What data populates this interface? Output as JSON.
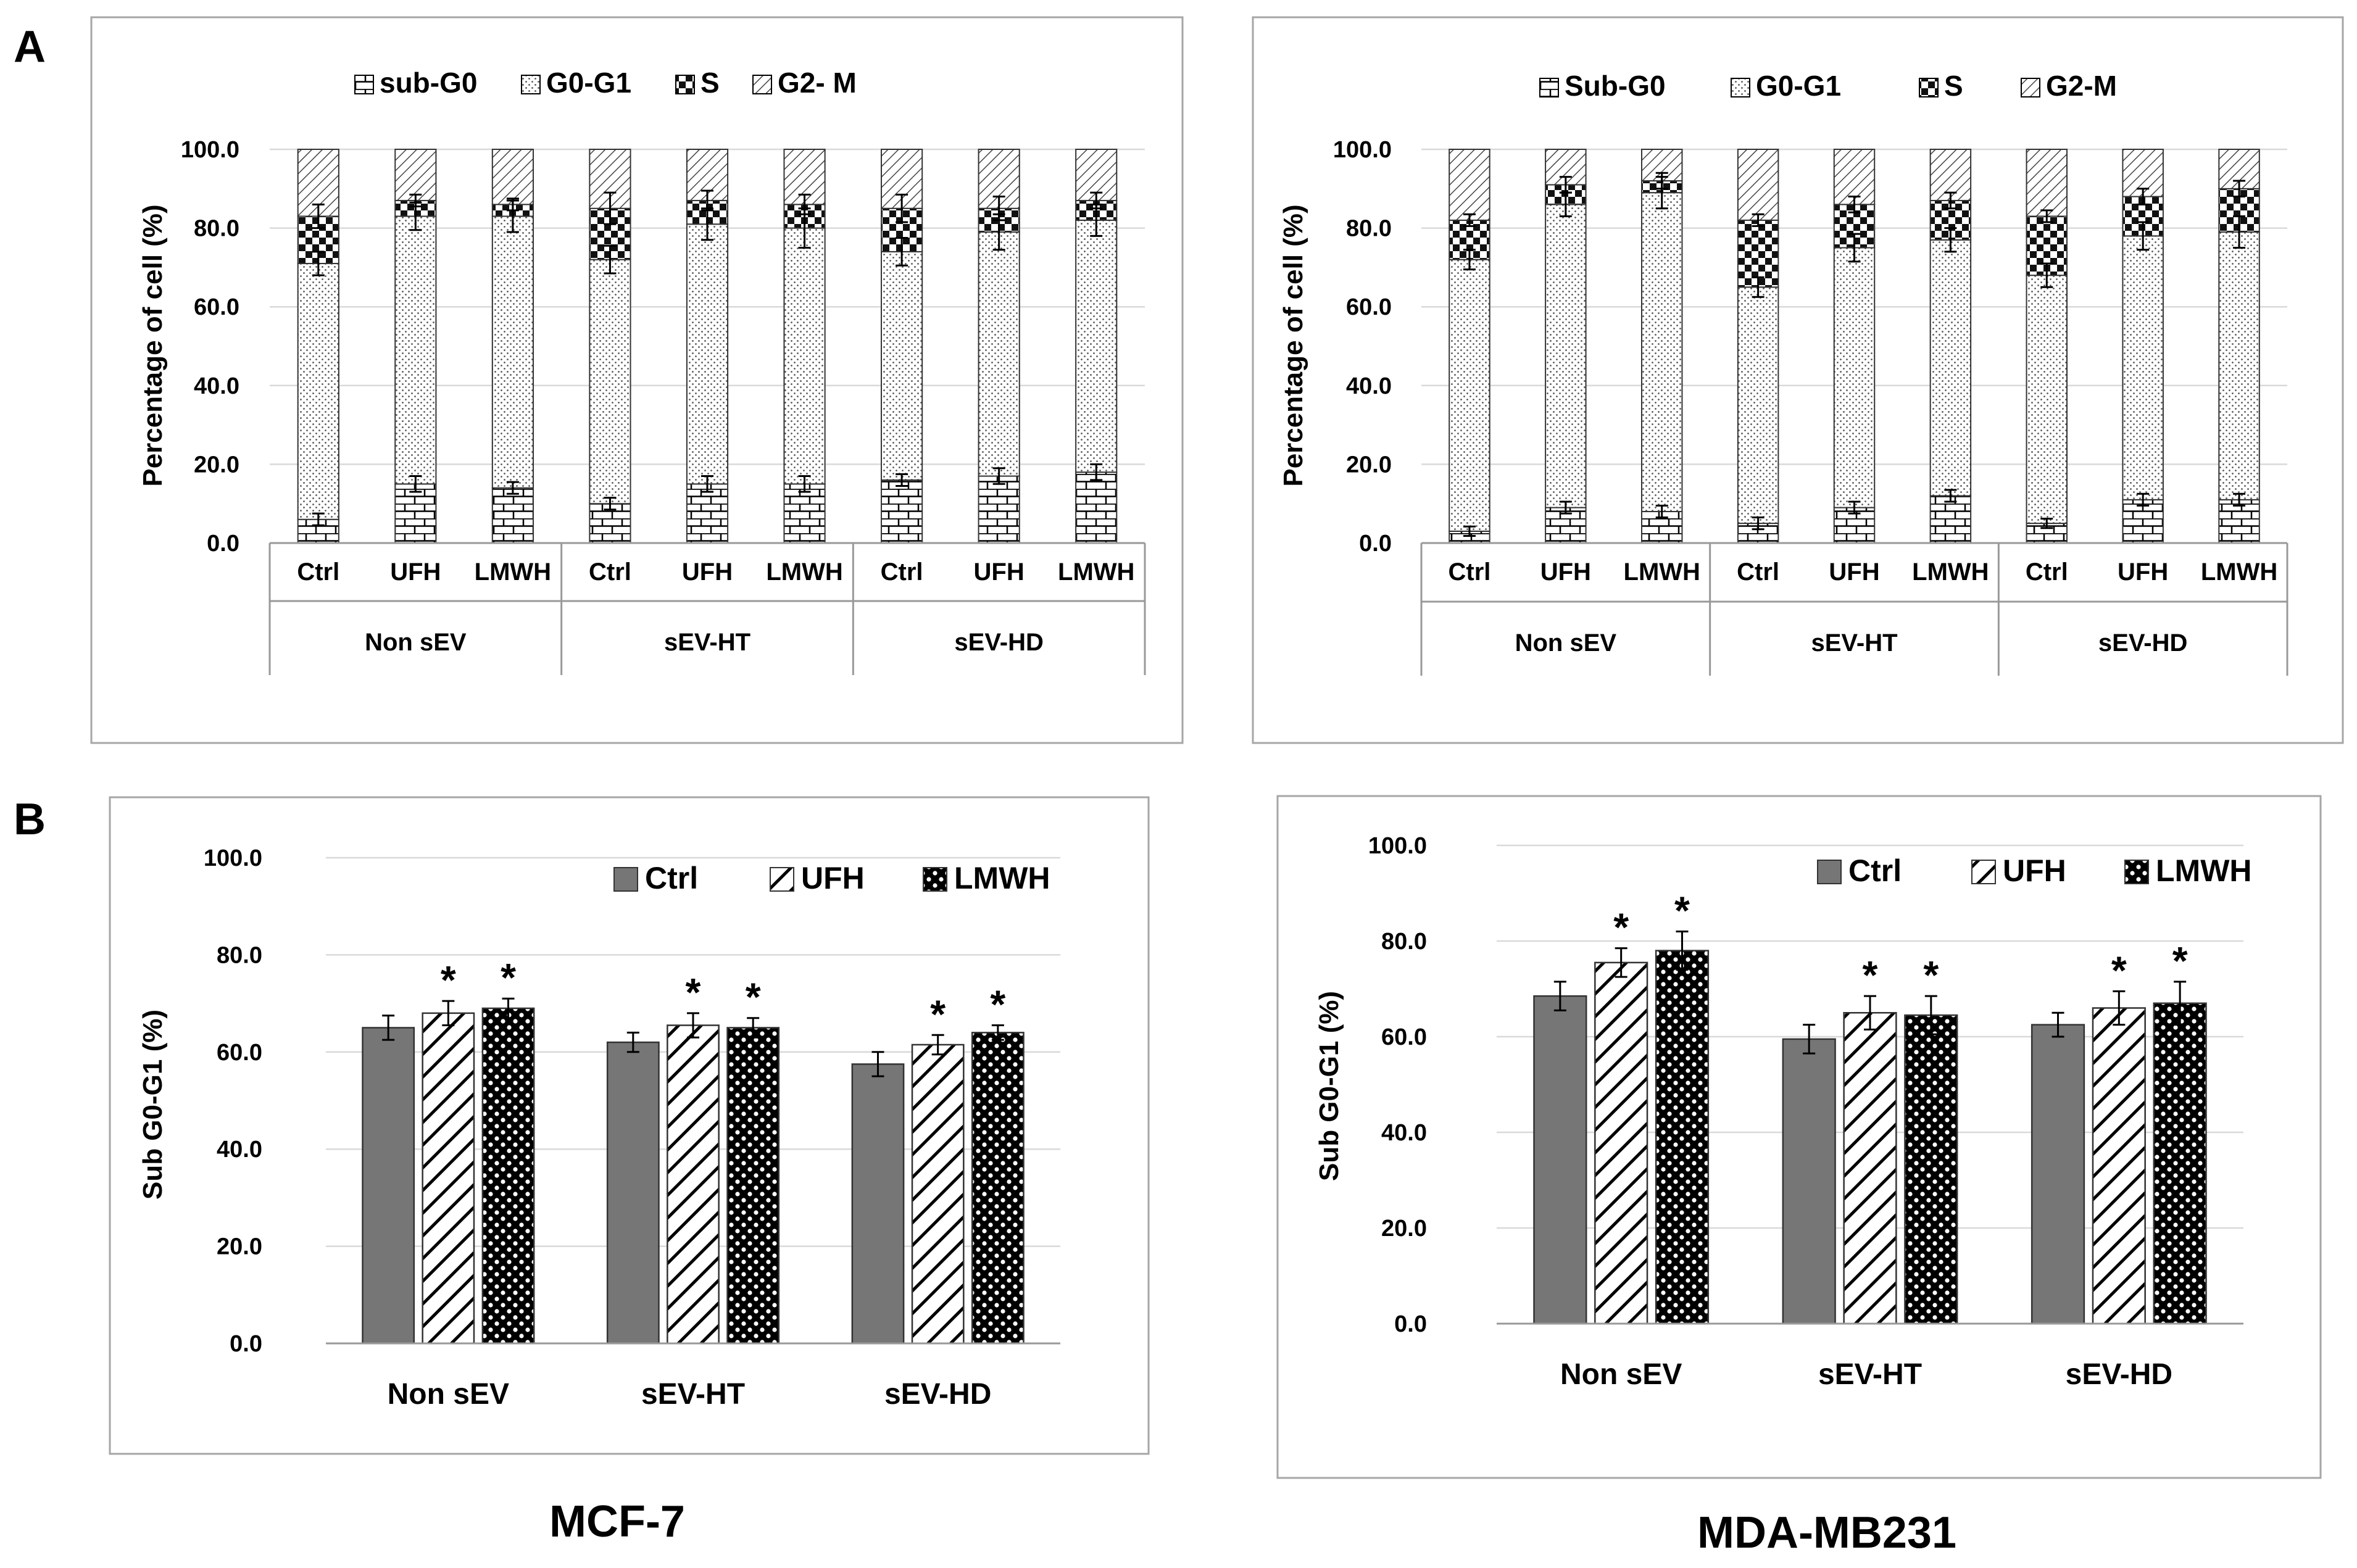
{
  "panel_labels": {
    "a": "A",
    "b": "B"
  },
  "cell_lines": {
    "left": "MCF-7",
    "right": "MDA-MB231"
  },
  "colors": {
    "frame": "#a6a6a6",
    "text": "#000000",
    "bar_dark": "#767676",
    "grid": "#d9d9d9"
  },
  "chart_data": [
    {
      "id": "a-mcf7",
      "type": "stacked-bar",
      "ylabel": "Percentage of cell (%)",
      "ylim": [
        0,
        100
      ],
      "yticks": [
        "0.0",
        "20.0",
        "40.0",
        "60.0",
        "80.0",
        "100.0"
      ],
      "legend": [
        "sub-G0",
        "G0-G1",
        "S",
        "G2- M"
      ],
      "groups": [
        {
          "label": "Non sEV",
          "bars": [
            "Ctrl",
            "UFH",
            "LMWH"
          ]
        },
        {
          "label": "sEV-HT",
          "bars": [
            "Ctrl",
            "UFH",
            "LMWH"
          ]
        },
        {
          "label": "sEV-HD",
          "bars": [
            "Ctrl",
            "UFH",
            "LMWH"
          ]
        }
      ],
      "series": [
        {
          "name": "sub-G0",
          "values": [
            6,
            15,
            14,
            10,
            15,
            15,
            16,
            17,
            18
          ]
        },
        {
          "name": "G0-G1",
          "values": [
            65,
            68,
            69,
            62,
            66,
            65,
            58,
            62,
            64
          ]
        },
        {
          "name": "S",
          "values": [
            12,
            4,
            3,
            13,
            6,
            6,
            11,
            6,
            5
          ]
        },
        {
          "name": "G2- M",
          "values": [
            17,
            13,
            14,
            15,
            13,
            14,
            15,
            15,
            13
          ]
        }
      ],
      "errors": {
        "sub-G0": [
          1.5,
          2,
          1.5,
          1.5,
          2,
          2,
          1.5,
          2,
          2
        ],
        "G0-G1": [
          3,
          3.5,
          4,
          3.5,
          4,
          5,
          3.5,
          4.5,
          4
        ],
        "S": [
          3,
          1.5,
          1.5,
          4,
          2.5,
          2.5,
          3.5,
          3,
          2
        ]
      }
    },
    {
      "id": "a-mda",
      "type": "stacked-bar",
      "ylabel": "Percentage of cell (%)",
      "ylim": [
        0,
        100
      ],
      "yticks": [
        "0.0",
        "20.0",
        "40.0",
        "60.0",
        "80.0",
        "100.0"
      ],
      "legend": [
        "Sub-G0",
        "G0-G1",
        "S",
        "G2-M"
      ],
      "groups": [
        {
          "label": "Non sEV",
          "bars": [
            "Ctrl",
            "UFH",
            "LMWH"
          ]
        },
        {
          "label": "sEV-HT",
          "bars": [
            "Ctrl",
            "UFH",
            "LMWH"
          ]
        },
        {
          "label": "sEV-HD",
          "bars": [
            "Ctrl",
            "UFH",
            "LMWH"
          ]
        }
      ],
      "series": [
        {
          "name": "Sub-G0",
          "values": [
            3,
            9,
            8,
            5,
            9,
            12,
            5,
            11,
            11
          ]
        },
        {
          "name": "G0-G1",
          "values": [
            69,
            77,
            81,
            60,
            66,
            65,
            63,
            67,
            68
          ]
        },
        {
          "name": "S",
          "values": [
            10,
            5,
            3,
            17,
            11,
            10,
            15,
            10,
            11
          ]
        },
        {
          "name": "G2-M",
          "values": [
            18,
            9,
            8,
            18,
            14,
            13,
            17,
            12,
            10
          ]
        }
      ],
      "errors": {
        "Sub-G0": [
          1.2,
          1.5,
          1.5,
          1.5,
          1.5,
          1.5,
          1.2,
          1.5,
          1.5
        ],
        "G0-G1": [
          2.5,
          3,
          4,
          2.5,
          3.5,
          3,
          3,
          3.5,
          4
        ],
        "S": [
          1.5,
          2,
          2,
          1.5,
          2,
          2,
          1.5,
          2,
          2
        ]
      }
    },
    {
      "id": "b-mcf7",
      "type": "bar",
      "ylabel": "Sub G0-G1  (%)",
      "ylim": [
        0,
        100
      ],
      "yticks": [
        "0.0",
        "20.0",
        "40.0",
        "60.0",
        "80.0",
        "100.0"
      ],
      "categories": [
        "Non sEV",
        "sEV-HT",
        "sEV-HD"
      ],
      "series": [
        {
          "name": "Ctrl",
          "values": [
            65.0,
            62.0,
            57.5
          ],
          "errors": [
            2.5,
            2.0,
            2.5
          ],
          "sig": [
            "",
            "",
            ""
          ]
        },
        {
          "name": "UFH",
          "values": [
            68.0,
            65.5,
            61.5
          ],
          "errors": [
            2.5,
            2.5,
            2.0
          ],
          "sig": [
            "*",
            "*",
            "*"
          ]
        },
        {
          "name": "LMWH",
          "values": [
            69.0,
            65.0,
            64.0
          ],
          "errors": [
            2.0,
            2.0,
            1.5
          ],
          "sig": [
            "*",
            "*",
            "*"
          ]
        }
      ]
    },
    {
      "id": "b-mda",
      "type": "bar",
      "ylabel": "Sub G0-G1 (%)",
      "ylim": [
        0,
        100
      ],
      "yticks": [
        "0.0",
        "20.0",
        "40.0",
        "60.0",
        "80.0",
        "100.0"
      ],
      "categories": [
        "Non sEV",
        "sEV-HT",
        "sEV-HD"
      ],
      "series": [
        {
          "name": "Ctrl",
          "values": [
            68.5,
            59.5,
            62.5
          ],
          "errors": [
            3.0,
            3.0,
            2.5
          ],
          "sig": [
            "",
            "",
            ""
          ]
        },
        {
          "name": "UFH",
          "values": [
            75.5,
            65.0,
            66.0
          ],
          "errors": [
            3.0,
            3.5,
            3.5
          ],
          "sig": [
            "*",
            "*",
            "*"
          ]
        },
        {
          "name": "LMWH",
          "values": [
            78.0,
            64.5,
            67.0
          ],
          "errors": [
            4.0,
            4.0,
            4.5
          ],
          "sig": [
            "*",
            "*",
            "*"
          ]
        }
      ]
    }
  ]
}
